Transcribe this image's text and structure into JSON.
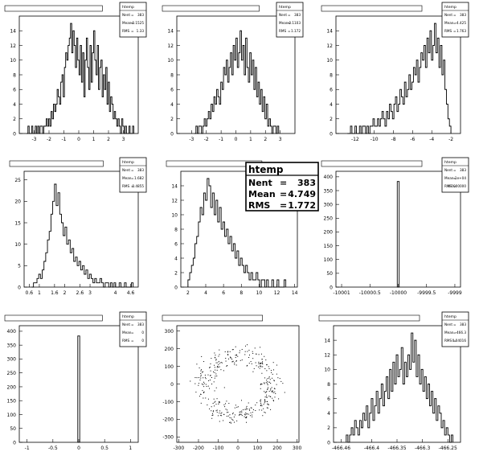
{
  "canvas": {
    "background": "#ffffff",
    "line_color": "#000000"
  },
  "chart_data": [
    {
      "type": "bar",
      "title_text": "",
      "stats": {
        "name": "htemp",
        "nent_label": "Nent",
        "nent": "383",
        "mean_label": "Mean",
        "mean": "-0.1525",
        "rms_label": "RMS",
        "rms": "1.33"
      },
      "x_ticks": [
        "-3",
        "-2",
        "-1",
        "0",
        "1",
        "2",
        "3"
      ],
      "y_ticks": [
        "0",
        "2",
        "4",
        "6",
        "8",
        "10",
        "12",
        "14"
      ],
      "xlim": [
        -4,
        4
      ],
      "ylim": [
        0,
        16
      ],
      "bin_edges": [
        -3.5,
        3.7
      ],
      "values": [
        0,
        1,
        0,
        0,
        1,
        0,
        0,
        1,
        0,
        1,
        0,
        1,
        1,
        0,
        1,
        1,
        2,
        1,
        2,
        1,
        3,
        2,
        4,
        3,
        4,
        6,
        5,
        4,
        7,
        8,
        5,
        9,
        11,
        10,
        12,
        13,
        15,
        11,
        14,
        12,
        9,
        13,
        10,
        8,
        12,
        7,
        11,
        5,
        10,
        13,
        9,
        6,
        12,
        7,
        11,
        14,
        10,
        8,
        12,
        6,
        9,
        10,
        5,
        8,
        6,
        9,
        4,
        7,
        3,
        5,
        4,
        2,
        3,
        2,
        1,
        2,
        1,
        0,
        2,
        1,
        0,
        1,
        0,
        0,
        1,
        0,
        0,
        1
      ]
    },
    {
      "type": "bar",
      "title_text": "",
      "stats": {
        "name": "htemp",
        "nent_label": "Nent",
        "nent": "383",
        "mean_label": "Mean",
        "mean": "-0.1103",
        "rms_label": "RMS",
        "rms": "1.172"
      },
      "x_ticks": [
        "-3",
        "-2",
        "-1",
        "0",
        "1",
        "2",
        "3"
      ],
      "y_ticks": [
        "0",
        "2",
        "4",
        "6",
        "8",
        "10",
        "12",
        "14"
      ],
      "xlim": [
        -4,
        4
      ],
      "ylim": [
        0,
        16
      ],
      "bin_edges": [
        -2.8,
        2.9
      ],
      "values": [
        0,
        1,
        0,
        1,
        1,
        0,
        1,
        2,
        1,
        2,
        3,
        2,
        4,
        3,
        5,
        4,
        6,
        5,
        4,
        7,
        6,
        9,
        8,
        10,
        7,
        9,
        11,
        8,
        12,
        10,
        13,
        9,
        11,
        14,
        10,
        12,
        8,
        13,
        9,
        7,
        11,
        8,
        10,
        6,
        9,
        5,
        7,
        4,
        6,
        3,
        5,
        2,
        4,
        1,
        2,
        1,
        0,
        1,
        1,
        0,
        1
      ]
    },
    {
      "type": "bar",
      "title_text": "",
      "stats": {
        "name": "htemp",
        "nent_label": "Nent",
        "nent": "383",
        "mean_label": "Mean",
        "mean": "-4.425",
        "rms_label": "RMS",
        "rms": "1.763"
      },
      "x_ticks": [
        "-12",
        "-10",
        "-8",
        "-6",
        "-4",
        "-2"
      ],
      "y_ticks": [
        "0",
        "2",
        "4",
        "6",
        "8",
        "10",
        "12",
        "14"
      ],
      "xlim": [
        -14,
        -1
      ],
      "ylim": [
        0,
        16
      ],
      "bin_edges": [
        -12.8,
        -2.0
      ],
      "values": [
        0,
        0,
        1,
        0,
        0,
        1,
        0,
        0,
        1,
        0,
        1,
        1,
        0,
        1,
        0,
        1,
        1,
        2,
        1,
        1,
        2,
        1,
        2,
        3,
        2,
        1,
        3,
        2,
        4,
        3,
        2,
        4,
        5,
        3,
        4,
        6,
        5,
        4,
        7,
        5,
        6,
        8,
        6,
        7,
        9,
        8,
        10,
        7,
        9,
        11,
        10,
        12,
        9,
        13,
        11,
        14,
        10,
        12,
        15,
        11,
        13,
        9,
        12,
        8,
        10,
        6,
        4,
        2,
        1
      ]
    },
    {
      "type": "bar",
      "title_text": "",
      "stats": {
        "name": "htemp",
        "nent_label": "Nent",
        "nent": "383",
        "mean_label": "Mean",
        "mean": "1.682",
        "rms_label": "RMS",
        "rms": "0.4855"
      },
      "x_ticks": [
        "0.6",
        "1",
        "1.6",
        "2",
        "2.6",
        "3",
        "4",
        "4.6"
      ],
      "y_ticks": [
        "0",
        "5",
        "10",
        "15",
        "20",
        "25"
      ],
      "xlim": [
        0.4,
        4.9
      ],
      "ylim": [
        0,
        27
      ],
      "bin_edges": [
        0.7,
        4.7
      ],
      "values": [
        0,
        1,
        1,
        2,
        3,
        2,
        4,
        6,
        8,
        11,
        13,
        17,
        20,
        24,
        19,
        22,
        17,
        15,
        12,
        14,
        10,
        11,
        8,
        9,
        6,
        7,
        5,
        6,
        4,
        5,
        3,
        4,
        2,
        3,
        2,
        1,
        2,
        1,
        1,
        2,
        1,
        0,
        1,
        1,
        0,
        1,
        0,
        1,
        0,
        0,
        1,
        0,
        0,
        1,
        0,
        0,
        0,
        1
      ]
    },
    {
      "type": "bar",
      "title_text": "",
      "stats": {
        "name": "htemp",
        "nent_label": "Nent",
        "nent": "383",
        "mean_label": "Mean",
        "mean": "4.749",
        "rms_label": "RMS",
        "rms": "1.772"
      },
      "x_ticks": [
        "2",
        "4",
        "6",
        "8",
        "10",
        "12",
        "14"
      ],
      "y_ticks": [
        "0",
        "2",
        "4",
        "6",
        "8",
        "10",
        "12",
        "14"
      ],
      "xlim": [
        1.2,
        14.3
      ],
      "ylim": [
        0,
        16
      ],
      "bin_edges": [
        2.0,
        13.0
      ],
      "values": [
        1,
        2,
        3,
        4,
        6,
        7,
        9,
        11,
        10,
        13,
        12,
        15,
        14,
        11,
        13,
        10,
        12,
        9,
        11,
        8,
        9,
        7,
        8,
        6,
        7,
        5,
        6,
        4,
        5,
        3,
        4,
        3,
        2,
        3,
        2,
        1,
        2,
        1,
        1,
        2,
        1,
        0,
        1,
        1,
        0,
        1,
        0,
        0,
        1,
        0,
        0,
        1,
        0,
        0,
        0,
        1
      ]
    },
    {
      "type": "bar",
      "title_text": "",
      "stats": {
        "name": "htemp",
        "nent_label": "Nent",
        "nent": "383",
        "mean_label": "Mean",
        "mean": "-1e+04",
        "rms_label": "RMS",
        "rms": "0.0000000"
      },
      "x_ticks": [
        "-10001",
        "-10000.5",
        "-10000",
        "-9999.5",
        "-9999"
      ],
      "y_ticks": [
        "0",
        "50",
        "100",
        "150",
        "200",
        "250",
        "300",
        "350",
        "400"
      ],
      "xlim": [
        -10001.1,
        -9998.9
      ],
      "ylim": [
        0,
        420
      ],
      "spike": {
        "x": -10000,
        "value": 383
      }
    },
    {
      "type": "bar",
      "title_text": "",
      "stats": {
        "name": "htemp",
        "nent_label": "Nent",
        "nent": "383",
        "mean_label": "Mean",
        "mean": "0",
        "rms_label": "RMS",
        "rms": "0"
      },
      "x_ticks": [
        "-1",
        "-0.5",
        "0",
        "0.5",
        "1"
      ],
      "y_ticks": [
        "0",
        "50",
        "100",
        "150",
        "200",
        "250",
        "300",
        "350",
        "400"
      ],
      "xlim": [
        -1.15,
        1.15
      ],
      "ylim": [
        0,
        420
      ],
      "spike": {
        "x": 0,
        "value": 383
      }
    },
    {
      "type": "scatter",
      "title_text": "",
      "x_ticks": [
        "-300",
        "-200",
        "-100",
        "0",
        "100",
        "200",
        "300"
      ],
      "y_ticks": [
        "-300",
        "-200",
        "-100",
        "0",
        "100",
        "200",
        "300"
      ],
      "xlim": [
        -310,
        310
      ],
      "ylim": [
        -330,
        330
      ],
      "n_points": 383
    },
    {
      "type": "bar",
      "title_text": "",
      "stats": {
        "name": "htemp",
        "nent_label": "Nent",
        "nent": "383",
        "mean_label": "Mean",
        "mean": "-466.3",
        "rms_label": "RMS",
        "rms": "0.04016"
      },
      "x_ticks": [
        "-466.46",
        "-466.4",
        "-466.35",
        "-466.3",
        "-466.25"
      ],
      "y_ticks": [
        "0",
        "2",
        "4",
        "6",
        "8",
        "10",
        "12",
        "14"
      ],
      "xlim": [
        -466.475,
        -466.225
      ],
      "ylim": [
        0,
        16
      ],
      "bin_edges": [
        -466.45,
        -466.24
      ],
      "values": [
        1,
        0,
        1,
        2,
        1,
        3,
        2,
        1,
        3,
        2,
        4,
        3,
        5,
        2,
        4,
        6,
        3,
        5,
        7,
        4,
        6,
        8,
        5,
        7,
        9,
        6,
        10,
        7,
        11,
        8,
        12,
        9,
        10,
        13,
        8,
        11,
        9,
        12,
        10,
        15,
        11,
        14,
        9,
        12,
        8,
        10,
        7,
        9,
        6,
        8,
        5,
        7,
        4,
        6,
        3,
        5,
        4,
        2,
        3,
        1,
        2,
        1,
        0,
        1
      ]
    }
  ]
}
